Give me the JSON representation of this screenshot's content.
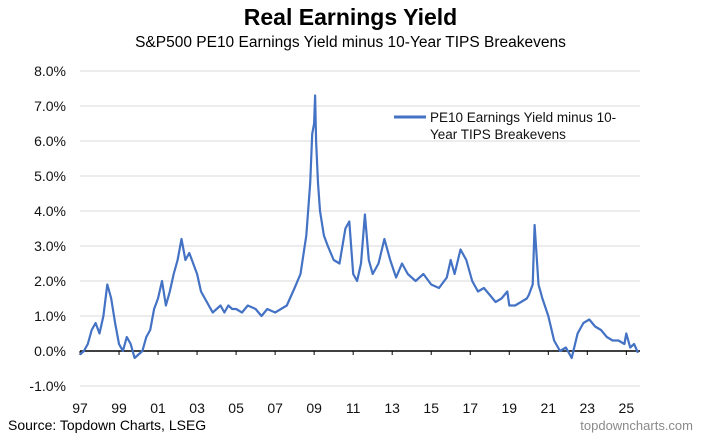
{
  "title": "Real Earnings Yield",
  "subtitle": "S&P500 PE10 Earnings Yield minus 10-Year TIPS Breakevens",
  "source": "Source: Topdown Charts, LSEG",
  "website": "topdowncharts.com",
  "colors": {
    "line": "#4472C4",
    "zero_line": "#000000",
    "grid": "#d9d9d9"
  },
  "chart_data": {
    "type": "line",
    "title": "Real Earnings Yield",
    "subtitle": "S&P500 PE10 Earnings Yield minus 10-Year TIPS Breakevens",
    "xlabel": "",
    "ylabel": "",
    "ylim": [
      -1.0,
      8.0
    ],
    "xlim": [
      1997.0,
      2025.7
    ],
    "y_ticks": [
      -1,
      0,
      1,
      2,
      3,
      4,
      5,
      6,
      7,
      8
    ],
    "y_tick_labels": [
      "-1.0%",
      "0.0%",
      "1.0%",
      "2.0%",
      "3.0%",
      "4.0%",
      "5.0%",
      "6.0%",
      "7.0%",
      "8.0%"
    ],
    "x_ticks": [
      1997,
      1999,
      2001,
      2003,
      2005,
      2007,
      2009,
      2011,
      2013,
      2015,
      2017,
      2019,
      2021,
      2023,
      2025
    ],
    "x_tick_labels": [
      "97",
      "99",
      "01",
      "03",
      "05",
      "07",
      "09",
      "11",
      "13",
      "15",
      "17",
      "19",
      "21",
      "23",
      "25"
    ],
    "grid": "horizontal",
    "legend_position": "top-right",
    "series": [
      {
        "name": "PE10 Earnings Yield minus 10-Year TIPS Breakevens",
        "x": [
          1997.0,
          1997.2,
          1997.4,
          1997.6,
          1997.8,
          1998.0,
          1998.2,
          1998.4,
          1998.5,
          1998.6,
          1998.8,
          1999.0,
          1999.2,
          1999.4,
          1999.6,
          1999.8,
          2000.0,
          2000.2,
          2000.4,
          2000.6,
          2000.8,
          2001.0,
          2001.2,
          2001.4,
          2001.6,
          2001.8,
          2002.0,
          2002.2,
          2002.4,
          2002.6,
          2002.8,
          2003.0,
          2003.2,
          2003.4,
          2003.6,
          2003.8,
          2004.0,
          2004.2,
          2004.4,
          2004.6,
          2004.8,
          2005.0,
          2005.3,
          2005.6,
          2006.0,
          2006.3,
          2006.6,
          2007.0,
          2007.3,
          2007.6,
          2008.0,
          2008.3,
          2008.6,
          2008.8,
          2008.9,
          2009.0,
          2009.05,
          2009.1,
          2009.2,
          2009.3,
          2009.5,
          2009.7,
          2010.0,
          2010.3,
          2010.6,
          2010.8,
          2011.0,
          2011.2,
          2011.4,
          2011.6,
          2011.8,
          2012.0,
          2012.3,
          2012.6,
          2012.9,
          2013.2,
          2013.5,
          2013.8,
          2014.2,
          2014.6,
          2015.0,
          2015.4,
          2015.8,
          2016.0,
          2016.2,
          2016.5,
          2016.8,
          2017.1,
          2017.4,
          2017.7,
          2018.0,
          2018.3,
          2018.6,
          2018.9,
          2019.0,
          2019.3,
          2019.6,
          2019.9,
          2020.0,
          2020.2,
          2020.3,
          2020.5,
          2020.7,
          2021.0,
          2021.3,
          2021.6,
          2021.9,
          2022.2,
          2022.5,
          2022.8,
          2023.1,
          2023.4,
          2023.7,
          2024.0,
          2024.3,
          2024.6,
          2024.9,
          2025.0,
          2025.2,
          2025.4,
          2025.6
        ],
        "values": [
          -0.1,
          0.0,
          0.2,
          0.6,
          0.8,
          0.5,
          1.0,
          1.9,
          1.7,
          1.5,
          0.8,
          0.2,
          0.0,
          0.4,
          0.2,
          -0.2,
          -0.1,
          0.0,
          0.4,
          0.6,
          1.2,
          1.5,
          2.0,
          1.3,
          1.7,
          2.2,
          2.6,
          3.2,
          2.6,
          2.8,
          2.5,
          2.2,
          1.7,
          1.5,
          1.3,
          1.1,
          1.2,
          1.3,
          1.1,
          1.3,
          1.2,
          1.2,
          1.1,
          1.3,
          1.2,
          1.0,
          1.2,
          1.1,
          1.2,
          1.3,
          1.8,
          2.2,
          3.3,
          4.8,
          6.2,
          6.5,
          7.3,
          6.0,
          4.8,
          4.0,
          3.3,
          3.0,
          2.6,
          2.5,
          3.5,
          3.7,
          2.2,
          2.0,
          2.5,
          3.9,
          2.6,
          2.2,
          2.5,
          3.2,
          2.6,
          2.1,
          2.5,
          2.2,
          2.0,
          2.2,
          1.9,
          1.8,
          2.1,
          2.6,
          2.2,
          2.9,
          2.6,
          2.0,
          1.7,
          1.8,
          1.6,
          1.4,
          1.5,
          1.7,
          1.3,
          1.3,
          1.4,
          1.5,
          1.6,
          1.9,
          3.6,
          1.9,
          1.5,
          1.0,
          0.3,
          0.0,
          0.1,
          -0.2,
          0.5,
          0.8,
          0.9,
          0.7,
          0.6,
          0.4,
          0.3,
          0.3,
          0.2,
          0.5,
          0.1,
          0.2,
          -0.05
        ]
      }
    ]
  }
}
